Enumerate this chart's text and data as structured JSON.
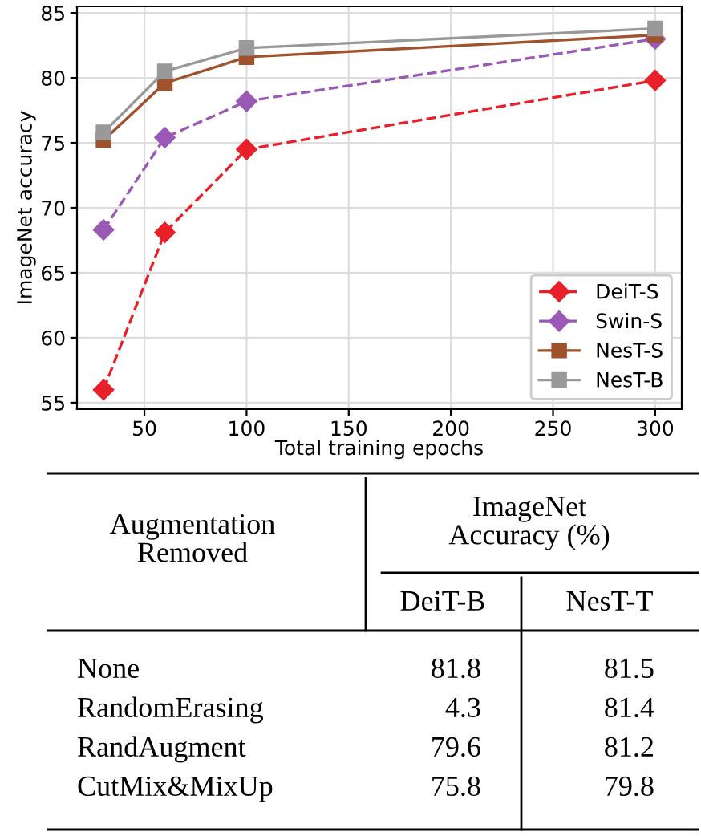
{
  "chart_data": [
    {
      "type": "line",
      "xlabel": "Total training epochs",
      "ylabel": "ImageNet accuracy",
      "x": [
        30,
        60,
        100,
        300
      ],
      "series": [
        {
          "name": "DeiT-S",
          "color": "#e8202a",
          "values": [
            56.0,
            68.1,
            74.5,
            79.8
          ],
          "marker": "diamond",
          "line_style": "dashed"
        },
        {
          "name": "Swin-S",
          "color": "#9b59b6",
          "values": [
            68.3,
            75.4,
            78.2,
            83.0
          ],
          "marker": "diamond",
          "line_style": "dashed"
        },
        {
          "name": "NesT-S",
          "color": "#a0522d",
          "values": [
            75.2,
            79.6,
            81.6,
            83.3
          ],
          "marker": "square",
          "line_style": "solid"
        },
        {
          "name": "NesT-B",
          "color": "#999999",
          "values": [
            75.8,
            80.5,
            82.3,
            83.8
          ],
          "marker": "square",
          "line_style": "solid"
        }
      ],
      "xlim": [
        17,
        313
      ],
      "ylim": [
        54.5,
        85.5
      ],
      "xticks": [
        50,
        100,
        150,
        200,
        250,
        300
      ],
      "yticks": [
        55,
        60,
        65,
        70,
        75,
        80,
        85
      ],
      "grid": true,
      "legend": "bottom right"
    },
    {
      "type": "other",
      "ylabel": "Augmentation\nRemoved",
      "title": "ImageNet\nAccuracy (%)",
      "categories": [
        "DeiT-B",
        "NesT-T"
      ],
      "y_categories": [
        "None",
        "RandomErasing",
        "RandAugment",
        "CutMix&MixUp"
      ],
      "cell_labels": [
        [
          "81.8",
          "81.5"
        ],
        [
          "4.3",
          "81.4"
        ],
        [
          "79.6",
          "81.2"
        ],
        [
          "75.8",
          "79.8"
        ]
      ]
    }
  ]
}
